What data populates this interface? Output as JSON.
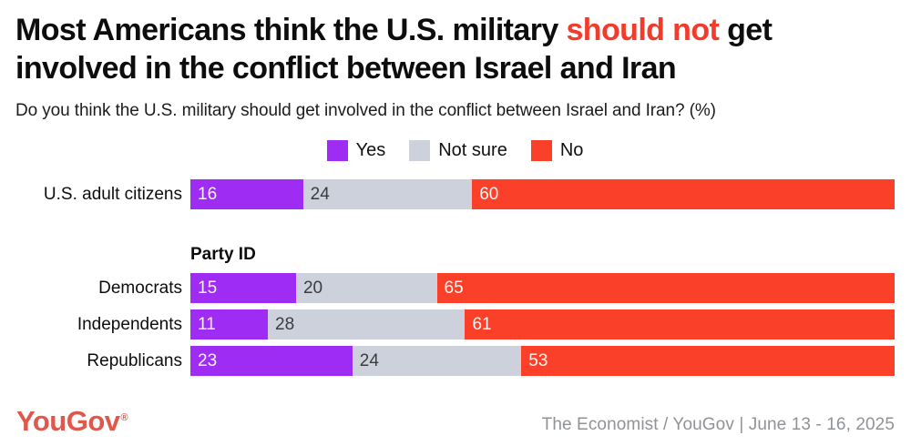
{
  "title": {
    "line1_pre": "Most Americans think the U.S. military ",
    "line1_highlight": "should not",
    "line1_post": " get",
    "line2": "involved in the conflict between Israel and Iran",
    "highlight_color": "#F23B2B"
  },
  "subtitle": "Do you think the U.S. military should get involved in the conflict between Israel and Iran? (%)",
  "chart_data": {
    "type": "bar",
    "stacked": true,
    "orientation": "horizontal",
    "unit": "%",
    "xlim": [
      0,
      100
    ],
    "legend_position": "top-center",
    "legend": [
      {
        "label": "Yes",
        "color": "#9E2CF2"
      },
      {
        "label": "Not sure",
        "color": "#CDD1DB"
      },
      {
        "label": "No",
        "color": "#FA4028"
      }
    ],
    "section_label": "Party ID",
    "rows": [
      {
        "label": "U.S. adult citizens",
        "group": "All",
        "values": [
          16,
          24,
          60
        ]
      },
      {
        "label": "Democrats",
        "group": "Party ID",
        "values": [
          15,
          20,
          65
        ]
      },
      {
        "label": "Independents",
        "group": "Party ID",
        "values": [
          11,
          28,
          61
        ]
      },
      {
        "label": "Republicans",
        "group": "Party ID",
        "values": [
          23,
          24,
          53
        ]
      }
    ]
  },
  "footer": {
    "logo_text": "YouGov",
    "logo_mark": "®",
    "logo_color": "#E0584C",
    "source": "The Economist / YouGov | June 13 - 16, 2025"
  }
}
